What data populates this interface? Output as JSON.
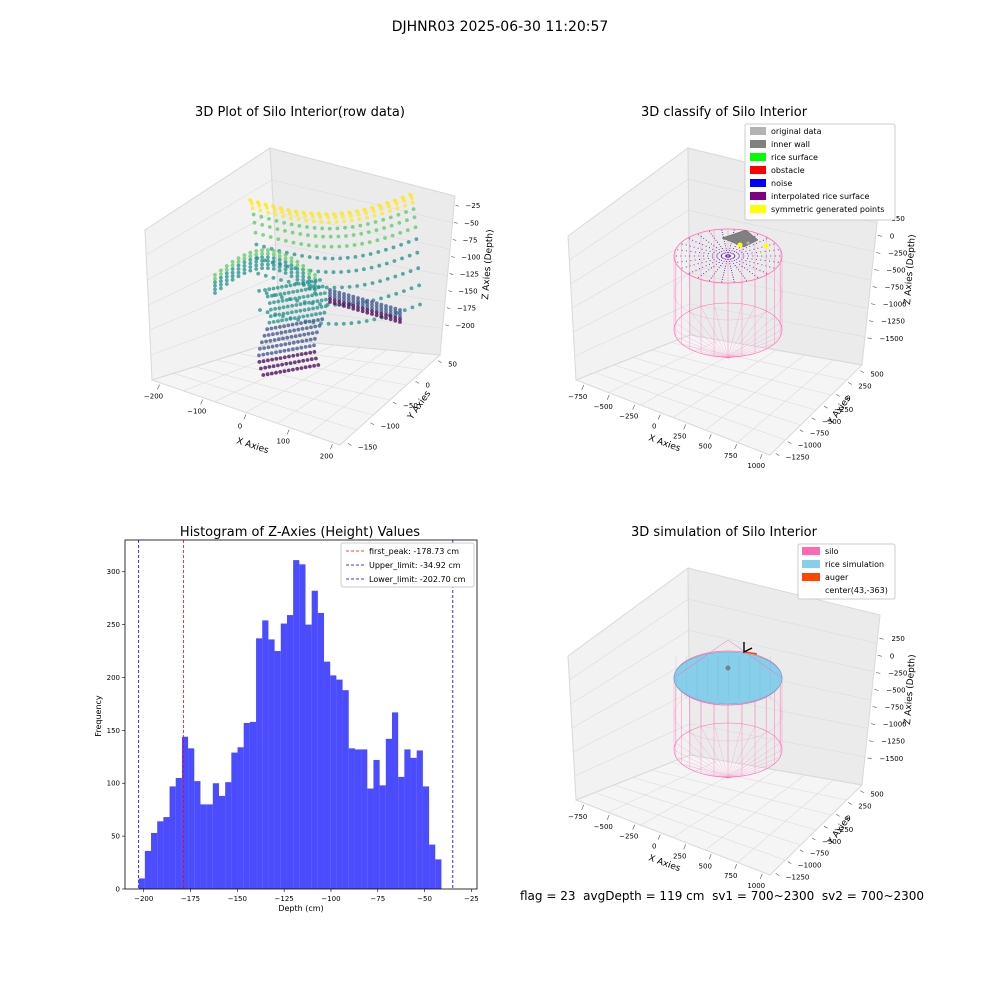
{
  "suptitle": "DJHNR03 2025-06-30 11:20:57",
  "footer": {
    "flag": "flag = 23",
    "avg": "avgDepth = 119 cm",
    "sv1": "sv1 = 700~2300",
    "sv2": "sv2 = 700~2300"
  },
  "colors": {
    "viridis": [
      "#440154",
      "#3b528b",
      "#21918c",
      "#5ec962",
      "#fde725"
    ],
    "hist": "#0000ff",
    "silo": "#ff69b4",
    "rice_sim": "#87ceeb",
    "auger": "#ff4500"
  },
  "chart_data": [
    {
      "type": "scatter",
      "projection": "3d",
      "title": "3D Plot of Silo Interior(row data)",
      "xlabel": "X Axies",
      "ylabel": "Y Axies",
      "zlabel": "Z Axies (Depth)",
      "xticks": [
        "−200",
        "−100",
        "0",
        "100",
        "200"
      ],
      "yticks": [
        "−150",
        "−100",
        "−50",
        "0",
        "50"
      ],
      "zticks": [
        "−200",
        "−175",
        "−150",
        "−125",
        "−100",
        "−75",
        "−50",
        "−25"
      ],
      "xlim": [
        -220,
        220
      ],
      "ylim": [
        -160,
        60
      ],
      "zlim": [
        -210,
        -20
      ],
      "colormap": "viridis"
    },
    {
      "type": "scatter",
      "projection": "3d",
      "title": "3D classify of Silo Interior",
      "xlabel": "X Axies",
      "ylabel": "Y Axies",
      "zlabel": "Z Axies (Depth)",
      "xticks": [
        "−750",
        "−500",
        "−250",
        "0",
        "250",
        "500",
        "750",
        "1000"
      ],
      "yticks": [
        "−1250",
        "−1000",
        "−750",
        "−500",
        "−250",
        "0",
        "250",
        "500"
      ],
      "zticks": [
        "−1500",
        "−1250",
        "−1000",
        "−750",
        "−500",
        "−250",
        "0",
        "250"
      ],
      "legend_position": "upper right",
      "legend": [
        {
          "label": "original data",
          "color": "#b3b3b3"
        },
        {
          "label": "inner wall",
          "color": "#808080"
        },
        {
          "label": "rice surface",
          "color": "#00ff00"
        },
        {
          "label": "obstacle",
          "color": "#ff0000"
        },
        {
          "label": "noise",
          "color": "#0000ff"
        },
        {
          "label": "interpolated rice surface",
          "color": "#800080"
        },
        {
          "label": "symmetric generated points",
          "color": "#ffff00"
        }
      ]
    },
    {
      "type": "bar",
      "title": "Histogram of Z-Axies (Height) Values",
      "xlabel": "Depth (cm)",
      "ylabel": "Frequency",
      "xlim": [
        -210,
        -22
      ],
      "ylim": [
        0,
        330
      ],
      "xticks": [
        -200,
        -175,
        -150,
        -125,
        -100,
        -75,
        -50,
        -25
      ],
      "xtick_labels": [
        "−200",
        "−175",
        "−150",
        "−125",
        "−100",
        "−75",
        "−50",
        "−25"
      ],
      "yticks": [
        0,
        50,
        100,
        150,
        200,
        250,
        300
      ],
      "bin_start": -202.7,
      "bin_width": 3.3,
      "values": [
        10,
        36,
        53,
        64,
        68,
        97,
        105,
        144,
        133,
        102,
        80,
        80,
        100,
        88,
        101,
        129,
        134,
        157,
        158,
        237,
        254,
        236,
        225,
        251,
        259,
        311,
        307,
        250,
        282,
        261,
        215,
        202,
        198,
        188,
        133,
        132,
        132,
        95,
        122,
        98,
        142,
        167,
        106,
        132,
        124,
        131,
        97,
        42,
        28
      ],
      "lines": [
        {
          "label": "first_peak: -178.73 cm",
          "x": -178.73,
          "color": "#ff0000"
        },
        {
          "label": "Upper_limit: -34.92 cm",
          "x": -34.92,
          "color": "#0000cc"
        },
        {
          "label": "Lower_limit: -202.70 cm",
          "x": -202.7,
          "color": "#0000cc"
        }
      ],
      "legend_position": "upper right"
    },
    {
      "type": "scatter",
      "projection": "3d",
      "title": "3D simulation of Silo Interior",
      "xlabel": "X Axies",
      "ylabel": "Y Axies",
      "zlabel": "Z Axies (Depth)",
      "xticks": [
        "−750",
        "−500",
        "−250",
        "0",
        "250",
        "500",
        "750",
        "1000"
      ],
      "yticks": [
        "−1250",
        "−1000",
        "−750",
        "−500",
        "−250",
        "0",
        "250",
        "500"
      ],
      "zticks": [
        "−1500",
        "−1250",
        "−1000",
        "−750",
        "−500",
        "−250",
        "0",
        "250"
      ],
      "legend_position": "upper right",
      "legend": [
        {
          "label": "silo",
          "color": "#ff69b4"
        },
        {
          "label": "rice simulation",
          "color": "#87ceeb"
        },
        {
          "label": "auger",
          "color": "#ff4500"
        },
        {
          "label": "center(43,-363)",
          "color": ""
        }
      ]
    }
  ]
}
